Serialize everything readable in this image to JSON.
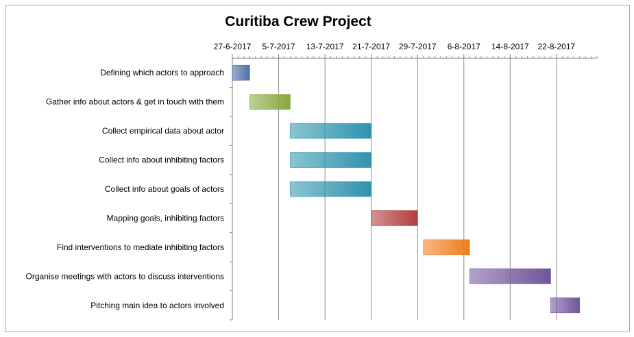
{
  "chart_data": {
    "type": "bar",
    "orientation": "horizontal-gantt",
    "title": "Curitiba Crew Project",
    "x_axis_position": "top",
    "x_ticks": [
      "27-6-2017",
      "5-7-2017",
      "13-7-2017",
      "21-7-2017",
      "29-7-2017",
      "6-8-2017",
      "14-8-2017",
      "22-8-2017"
    ],
    "xlim": [
      "2017-06-27",
      "2017-08-29"
    ],
    "grid": "vertical major gridlines",
    "tasks": [
      {
        "name": "Defining which actors to approach",
        "start": "2017-06-27",
        "end": "2017-06-30",
        "color": "#4a6fa8"
      },
      {
        "name": "Gather info about actors & get in touch with them",
        "start": "2017-06-30",
        "end": "2017-07-07",
        "color": "#86a83c"
      },
      {
        "name": "Collect empirical data about actor",
        "start": "2017-07-07",
        "end": "2017-07-21",
        "color": "#2f93ad"
      },
      {
        "name": "Collect info about inhibiting factors",
        "start": "2017-07-07",
        "end": "2017-07-21",
        "color": "#2f93ad"
      },
      {
        "name": "Collect info about goals of actors",
        "start": "2017-07-07",
        "end": "2017-07-21",
        "color": "#2f93ad"
      },
      {
        "name": "Mapping goals, inhibiting factors",
        "start": "2017-07-21",
        "end": "2017-07-29",
        "color": "#b23b3b"
      },
      {
        "name": "Find interventions to mediate inhibiting factors",
        "start": "2017-07-30",
        "end": "2017-08-07",
        "color": "#ee7d1c"
      },
      {
        "name": "Organise meetings with actors to discuss interventions",
        "start": "2017-08-07",
        "end": "2017-08-21",
        "color": "#71559a"
      },
      {
        "name": "Pitching main idea to actors involved",
        "start": "2017-08-21",
        "end": "2017-08-26",
        "color": "#71559a"
      }
    ]
  }
}
